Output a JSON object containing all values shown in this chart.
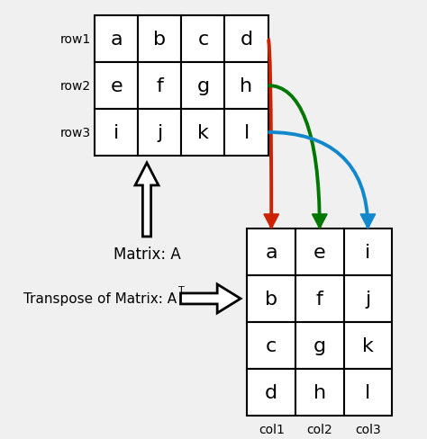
{
  "background_color": "#f0f0f0",
  "matrix_A": [
    [
      "a",
      "b",
      "c",
      "d"
    ],
    [
      "e",
      "f",
      "g",
      "h"
    ],
    [
      "i",
      "j",
      "k",
      "l"
    ]
  ],
  "matrix_T": [
    [
      "a",
      "e",
      "i"
    ],
    [
      "b",
      "f",
      "j"
    ],
    [
      "c",
      "g",
      "k"
    ],
    [
      "d",
      "h",
      "l"
    ]
  ],
  "row_labels": [
    "row1",
    "row2",
    "row3"
  ],
  "col_labels": [
    "col1",
    "col2",
    "col3"
  ],
  "arrow_colors": [
    "#cc2200",
    "#007700",
    "#1188cc"
  ],
  "cell_font_size": 16,
  "label_font_size": 10,
  "annotation_font_size": 12
}
